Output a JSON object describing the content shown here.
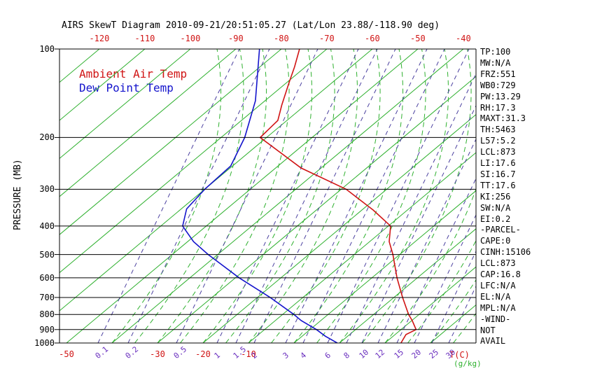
{
  "title": "AIRS SkewT Diagram 2010-09-21/20:51:05.27 (Lat/Lon 23.88/-118.90 deg)",
  "legend": {
    "temp": "Ambient Air Temp",
    "dewpoint": "Dew Point Temp"
  },
  "axes": {
    "pressure_label": "PRESSURE (MB)",
    "pressure_ticks": [
      100,
      200,
      300,
      400,
      500,
      600,
      700,
      800,
      900,
      1000
    ],
    "top_temp_ticks": [
      -120,
      -110,
      -100,
      -90,
      -80,
      -70,
      -60,
      -50,
      -40
    ],
    "bottom_temp_ticks": [
      -50,
      -30,
      -20,
      -10
    ],
    "temp_unit_label": "T(C)",
    "mixing_ratio_ticks": [
      "0.1",
      "0.2",
      "0.5",
      "1",
      "1.5",
      "2",
      "3",
      "4",
      "6",
      "8",
      "10",
      "12",
      "15",
      "20",
      "25",
      "30"
    ],
    "mixing_ratio_unit_label": "(g/kg)"
  },
  "stats": [
    "TP:100",
    "MW:N/A",
    "FRZ:551",
    "WB0:729",
    "PW:13.29",
    "RH:17.3",
    "MAXT:31.3",
    "TH:5463",
    "L57:5.2",
    "LCL:873",
    "LI:17.6",
    "SI:16.7",
    "TT:17.6",
    "KI:256",
    "SW:N/A",
    "EI:0.2",
    "-PARCEL-",
    "CAPE:0",
    "CINH:15106",
    "LCL:873",
    "CAP:16.8",
    "LFC:N/A",
    "EL:N/A",
    "MPL:N/A",
    "-WIND-",
    "NOT",
    "AVAIL"
  ],
  "colors": {
    "temp_profile": "#d01414",
    "dewpoint_profile": "#1414cc",
    "isotherm_green": "#2eb02e",
    "mixing_ratio_purple": "#4a3f9f",
    "mixing_label_purple": "#6a2fbf",
    "axis_black": "#000000",
    "background": "#ffffff"
  },
  "chart_data": {
    "type": "line",
    "title": "AIRS SkewT Diagram 2010-09-21/20:51:05.27 (Lat/Lon 23.88/-118.90 deg)",
    "xlabel": "T(C)",
    "ylabel": "PRESSURE (MB)",
    "x_range_c": [
      -130,
      40
    ],
    "pressure_range_mb": [
      100,
      1000
    ],
    "pressure_log_scale": true,
    "grid": "skew-t (skewed isotherms, moist adiabats, mixing-ratio lines, isobars)",
    "isotherms_c": {
      "min": -130,
      "max": 40,
      "step": 10
    },
    "moist_adiabats_c": {
      "min": -40,
      "max": 40,
      "step": 5
    },
    "mixing_ratio_lines_g_kg": [
      0.1,
      0.2,
      0.5,
      1,
      1.5,
      2,
      3,
      4,
      6,
      8,
      10,
      12,
      15,
      20,
      25,
      30
    ],
    "series": [
      {
        "name": "Ambient Air Temp",
        "color": "#d01414",
        "points_p_t": [
          [
            100,
            -76.0
          ],
          [
            115,
            -72.4
          ],
          [
            130,
            -69.5
          ],
          [
            155,
            -65.2
          ],
          [
            175,
            -62.0
          ],
          [
            200,
            -61.4
          ],
          [
            254,
            -44.4
          ],
          [
            300,
            -28.9
          ],
          [
            353,
            -17.5
          ],
          [
            400,
            -9.5
          ],
          [
            452,
            -5.7
          ],
          [
            500,
            -1.5
          ],
          [
            600,
            5.5
          ],
          [
            700,
            11.9
          ],
          [
            800,
            17.7
          ],
          [
            839,
            20.1
          ],
          [
            900,
            23.3
          ],
          [
            936,
            22.4
          ],
          [
            1000,
            23.5
          ]
        ]
      },
      {
        "name": "Dew Point Temp",
        "color": "#1414cc",
        "points_p_t": [
          [
            100,
            -84.8
          ],
          [
            150,
            -72.1
          ],
          [
            200,
            -64.8
          ],
          [
            250,
            -60.4
          ],
          [
            300,
            -60.0
          ],
          [
            350,
            -58.8
          ],
          [
            400,
            -55.2
          ],
          [
            452,
            -48.7
          ],
          [
            500,
            -42.1
          ],
          [
            600,
            -29.2
          ],
          [
            700,
            -17.2
          ],
          [
            800,
            -7.5
          ],
          [
            839,
            -4.3
          ],
          [
            900,
            1.4
          ],
          [
            948,
            5.1
          ],
          [
            1000,
            9.5
          ]
        ]
      }
    ]
  }
}
